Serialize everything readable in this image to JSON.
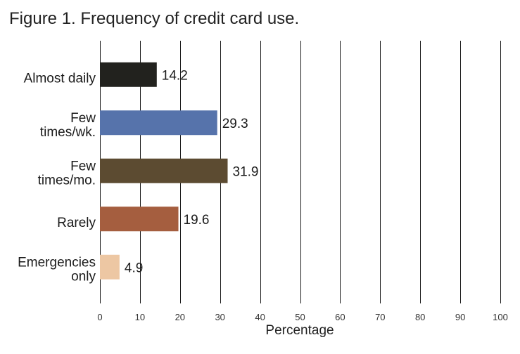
{
  "chart_data": {
    "type": "bar",
    "orientation": "horizontal",
    "title": "Figure 1. Frequency of credit card use.",
    "xlabel": "Percentage",
    "ylabel": "",
    "xlim": [
      0,
      100
    ],
    "xticks": [
      0,
      10,
      20,
      30,
      40,
      50,
      60,
      70,
      80,
      90,
      100
    ],
    "grid": "vertical",
    "categories": [
      [
        "Almost daily"
      ],
      [
        "Few",
        "times/wk."
      ],
      [
        "Few",
        "times/mo."
      ],
      [
        "Rarely"
      ],
      [
        "Emergencies",
        "only"
      ]
    ],
    "values": [
      14.2,
      29.3,
      31.9,
      19.6,
      4.9
    ],
    "value_labels": [
      "14.2",
      "29.3",
      "31.9",
      "19.6",
      "4.9"
    ],
    "colors": [
      "#22221e",
      "#5673ab",
      "#5c4b31",
      "#a55e3f",
      "#edc7a3"
    ]
  }
}
